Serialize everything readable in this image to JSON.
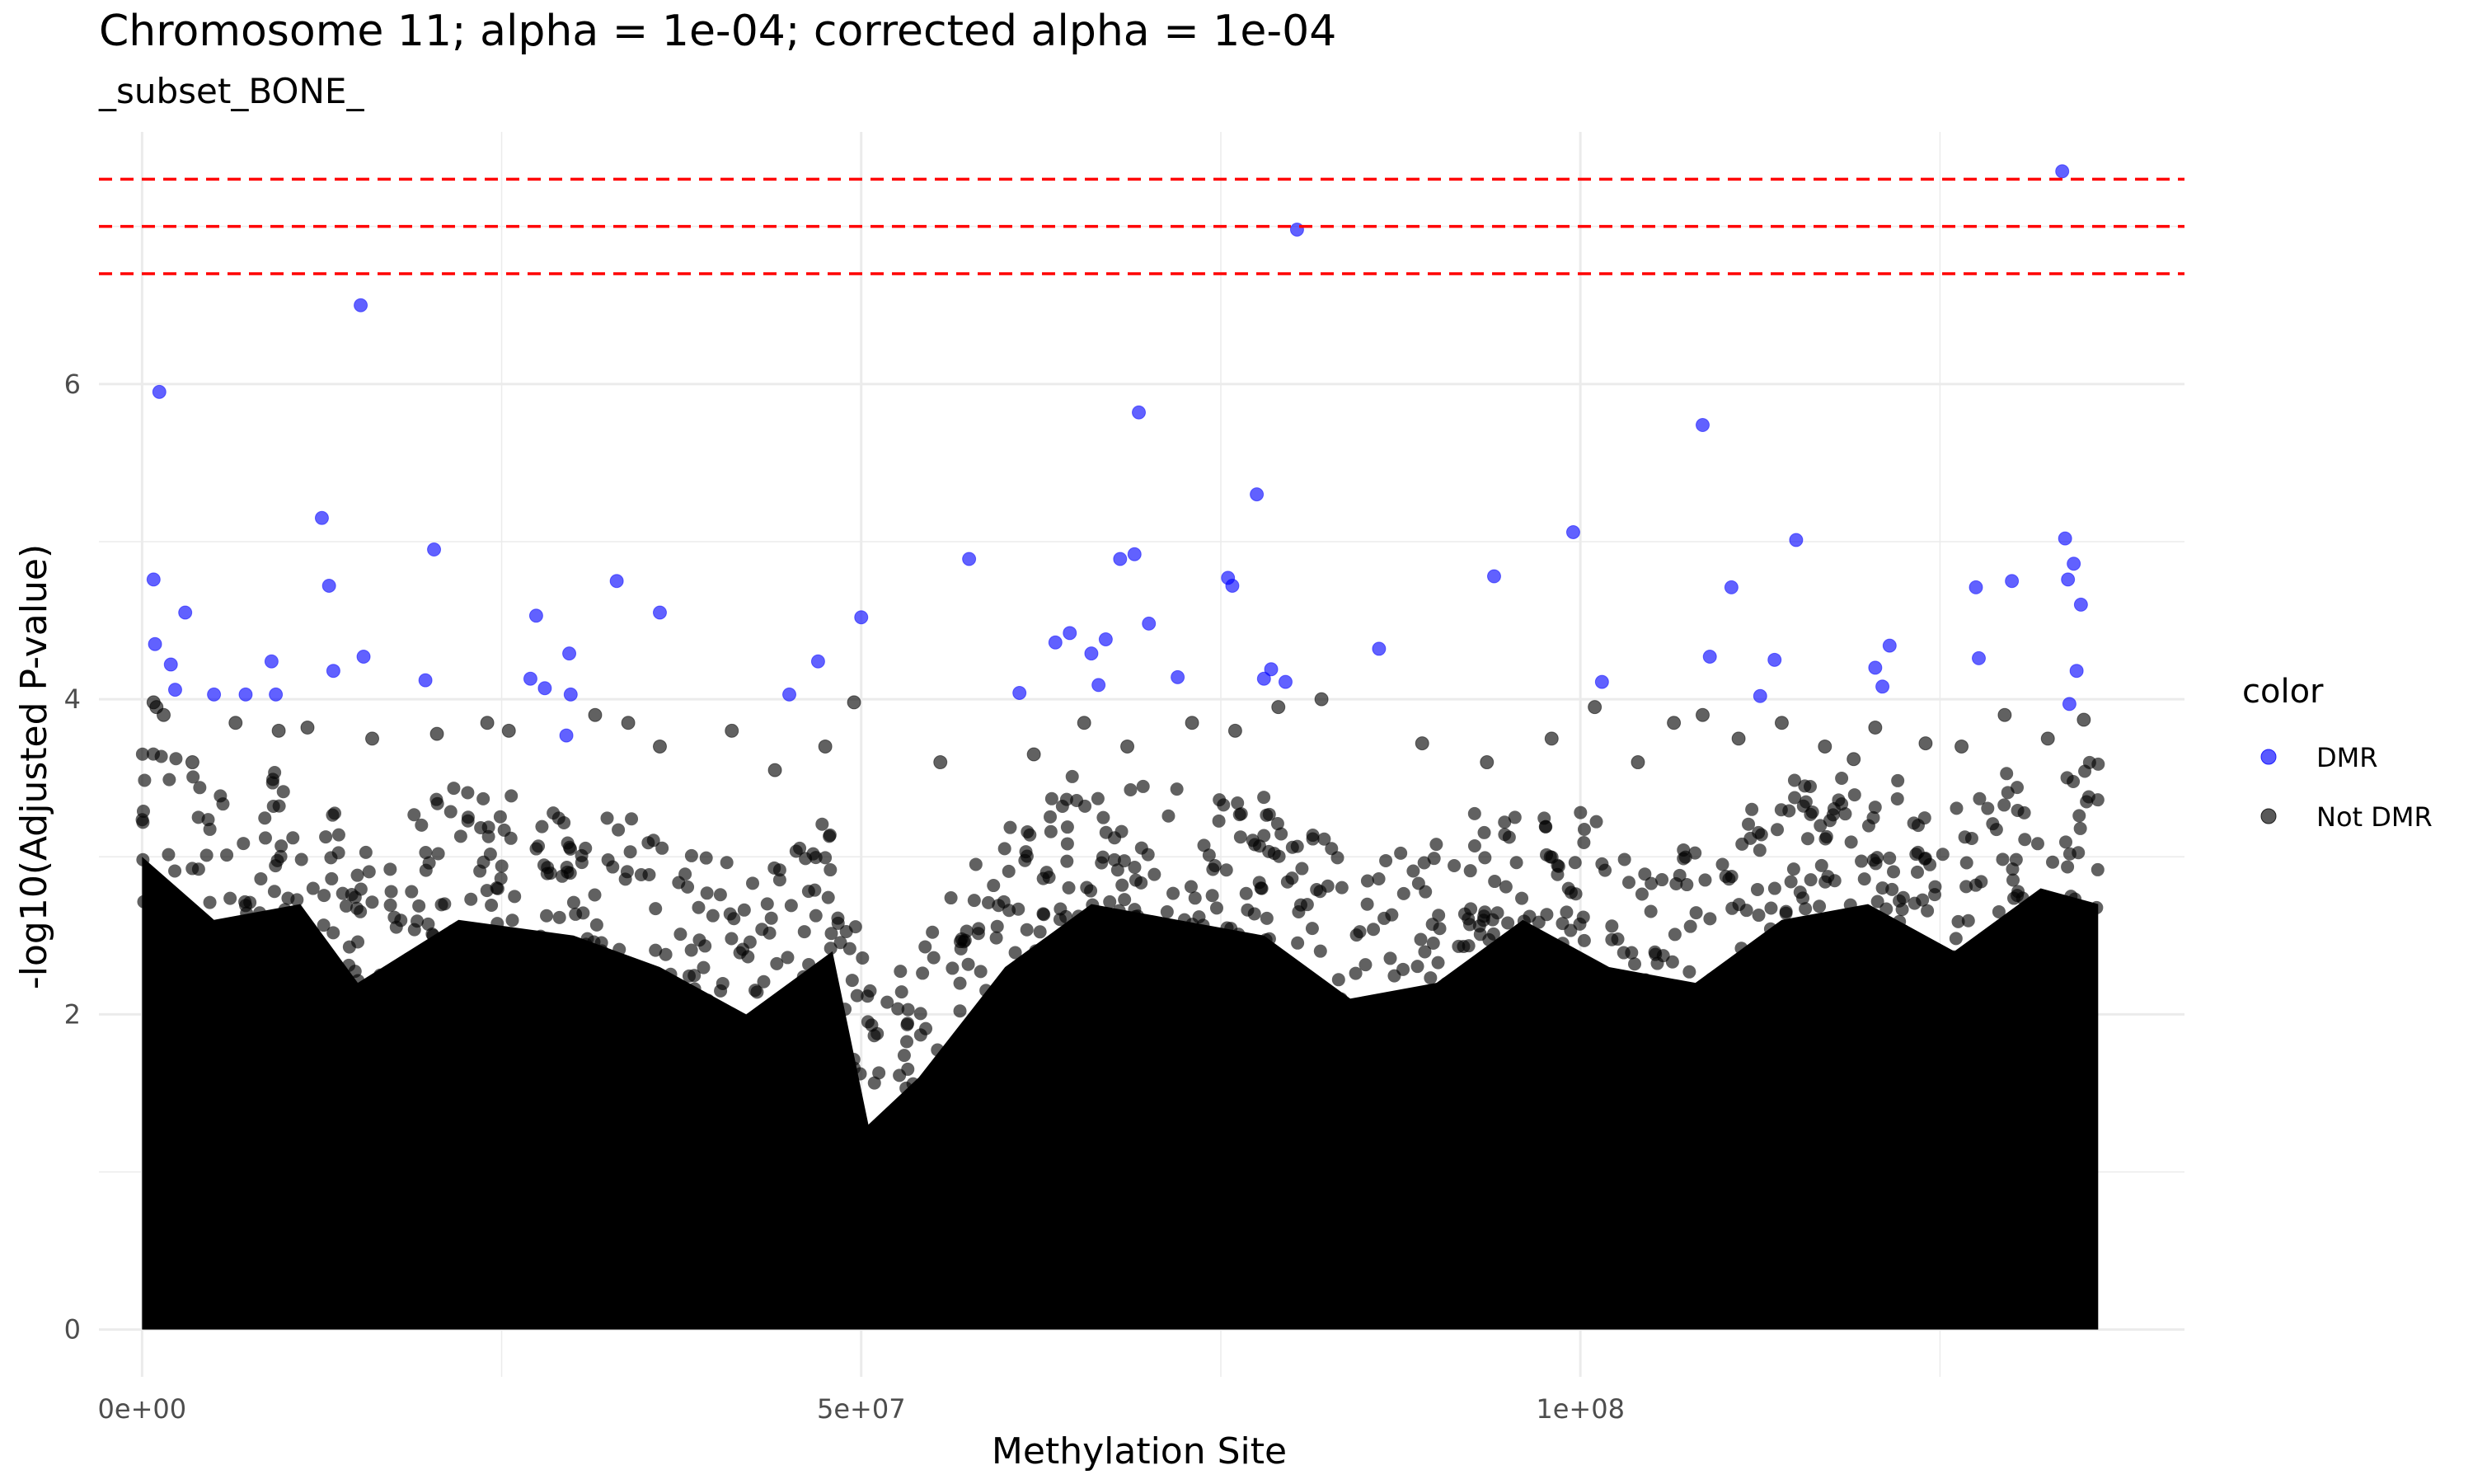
{
  "chart_data": {
    "type": "scatter",
    "title": "Chromosome 11; alpha = 1e-04; corrected alpha = 1e-04",
    "subtitle": "_subset_BONE_",
    "xlabel": "Methylation Site",
    "ylabel": "-log10(Adjusted P-value)",
    "xlim": [
      -3000000,
      142000000
    ],
    "ylim": [
      -0.3,
      7.6
    ],
    "x_ticks": [
      0,
      50000000,
      100000000
    ],
    "x_tick_labels": [
      "0e+00",
      "5e+07",
      "1e+08"
    ],
    "y_ticks": [
      0,
      2,
      4,
      6
    ],
    "y_tick_labels": [
      "0",
      "2",
      "4",
      "6"
    ],
    "grid": true,
    "hlines": [
      {
        "y": 6.7,
        "color": "#ff0000",
        "style": "dashed"
      },
      {
        "y": 7.0,
        "color": "#ff0000",
        "style": "dashed"
      },
      {
        "y": 7.3,
        "color": "#ff0000",
        "style": "dashed"
      }
    ],
    "legend": {
      "title": "color",
      "placement": "right",
      "entries": [
        {
          "label": "DMR",
          "color": "#0000ff"
        },
        {
          "label": "Not DMR",
          "color": "#000000"
        }
      ]
    },
    "series": [
      {
        "name": "DMR",
        "color": "#0000ff",
        "x": [
          1200000,
          800000,
          900000,
          2000000,
          2300000,
          3000000,
          5000000,
          7200000,
          9000000,
          9300000,
          12500000,
          13000000,
          13300000,
          15200000,
          15400000,
          20300000,
          19700000,
          27000000,
          27400000,
          28000000,
          29500000,
          29700000,
          29800000,
          33000000,
          36000000,
          45000000,
          47000000,
          50000000,
          57500000,
          61000000,
          63500000,
          64500000,
          66000000,
          66500000,
          67000000,
          68000000,
          69000000,
          69300000,
          70000000,
          72000000,
          75500000,
          75800000,
          77500000,
          78000000,
          78500000,
          79500000,
          80300000,
          86000000,
          94000000,
          99500000,
          101500000,
          108500000,
          109000000,
          110500000,
          112500000,
          113500000,
          115000000,
          120500000,
          121000000,
          121500000,
          127500000,
          127700000,
          130000000,
          133500000,
          133700000,
          133900000,
          134000000,
          134300000,
          134500000,
          134800000
        ],
        "y": [
          5.95,
          4.76,
          4.35,
          4.22,
          4.06,
          4.55,
          4.03,
          4.03,
          4.24,
          4.03,
          5.15,
          4.72,
          4.18,
          6.5,
          4.27,
          4.95,
          4.12,
          4.13,
          4.53,
          4.07,
          3.77,
          4.29,
          4.03,
          4.75,
          4.55,
          4.03,
          4.24,
          4.52,
          4.89,
          4.04,
          4.36,
          4.42,
          4.29,
          4.09,
          4.38,
          4.89,
          4.92,
          5.82,
          4.48,
          4.14,
          4.77,
          4.72,
          5.3,
          4.13,
          4.19,
          4.11,
          6.98,
          4.32,
          4.78,
          5.06,
          4.11,
          5.74,
          4.27,
          4.71,
          4.02,
          4.25,
          5.01,
          4.2,
          4.08,
          4.34,
          4.71,
          4.26,
          4.75,
          7.35,
          5.02,
          4.76,
          3.97,
          4.86,
          4.18,
          4.6
        ]
      },
      {
        "name": "Not DMR",
        "color": "#000000",
        "x": [
          800000,
          1000000,
          1500000,
          3500000,
          6500000,
          9500000,
          11500000,
          16000000,
          20500000,
          24000000,
          25500000,
          31500000,
          33800000,
          36000000,
          41000000,
          44000000,
          47500000,
          49500000,
          55500000,
          62000000,
          65500000,
          68500000,
          73000000,
          76000000,
          79000000,
          82000000,
          89000000,
          93500000,
          98000000,
          101000000,
          104000000,
          106500000,
          108500000,
          111000000,
          114000000,
          117000000,
          119000000,
          120500000,
          124000000,
          126500000,
          129500000,
          132500000,
          135000000
        ],
        "y": [
          3.98,
          3.95,
          3.9,
          3.6,
          3.85,
          3.8,
          3.82,
          3.75,
          3.78,
          3.85,
          3.8,
          3.9,
          3.85,
          3.7,
          3.8,
          3.55,
          3.7,
          3.98,
          3.6,
          3.65,
          3.85,
          3.7,
          3.85,
          3.8,
          3.95,
          4.0,
          3.72,
          3.6,
          3.75,
          3.95,
          3.6,
          3.85,
          3.9,
          3.75,
          3.85,
          3.7,
          3.62,
          3.82,
          3.72,
          3.7,
          3.9,
          3.75,
          3.87
        ]
      }
    ]
  }
}
